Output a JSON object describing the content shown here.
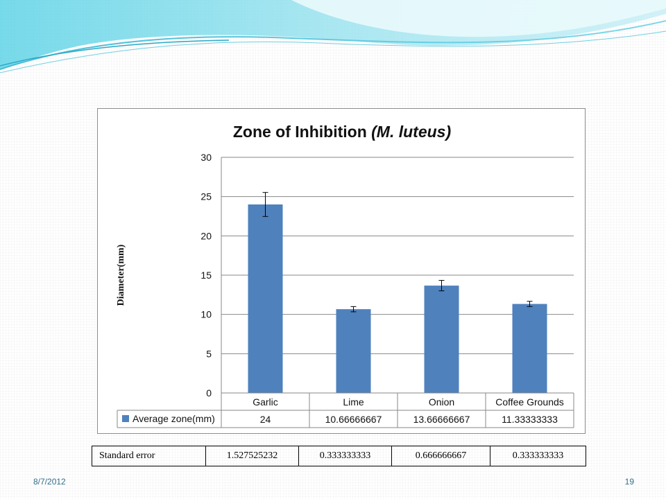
{
  "chart_data": {
    "type": "bar",
    "title": "Zone of Inhibition",
    "title_italic": "(M. luteus)",
    "ylabel": "Diameter(mm)",
    "xlabel": "",
    "ylim": [
      0,
      30
    ],
    "yticks": [
      0,
      5,
      10,
      15,
      20,
      25,
      30
    ],
    "grid": true,
    "categories": [
      "Garlic",
      "Lime",
      "Onion",
      "Coffee Grounds"
    ],
    "series": [
      {
        "name": "Average zone(mm)",
        "values": [
          24,
          10.66666667,
          13.66666667,
          11.33333333
        ],
        "value_labels": [
          "24",
          "10.66666667",
          "13.66666667",
          "11.33333333"
        ],
        "error": [
          1.527525232,
          0.333333333,
          0.666666667,
          0.333333333
        ],
        "color": "#4f81bd"
      }
    ],
    "legend": "data-table"
  },
  "error_table": {
    "label": "Standard error",
    "values": [
      "1.527525232",
      "0.333333333",
      "0.666666667",
      "0.333333333"
    ]
  },
  "footer": {
    "date": "8/7/2012",
    "page_number": "19"
  },
  "colors": {
    "bar": "#4f81bd",
    "accent": "#2f6f8c",
    "wave_light": "#c8eef5",
    "wave_dark": "#5bc8dc"
  }
}
